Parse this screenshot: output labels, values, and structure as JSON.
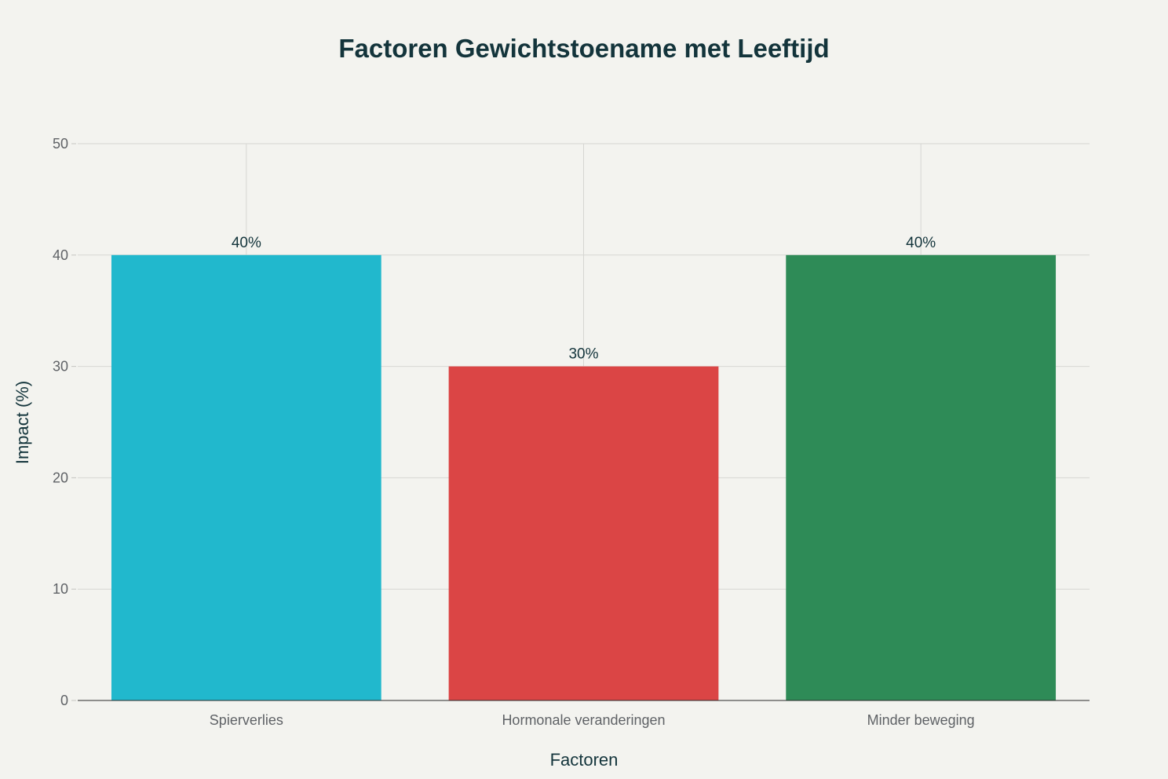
{
  "chart_data": {
    "type": "bar",
    "title": "Factoren Gewichtstoename met Leeftijd",
    "xlabel": "Factoren",
    "ylabel": "Impact (%)",
    "categories": [
      "Spierverlies",
      "Hormonale veranderingen",
      "Minder beweging"
    ],
    "values": [
      40,
      30,
      40
    ],
    "data_labels": [
      "40%",
      "30%",
      "40%"
    ],
    "colors": [
      "#21b8cd",
      "#db4545",
      "#2e8b57"
    ],
    "ylim": [
      0,
      50
    ],
    "yticks": [
      0,
      10,
      20,
      30,
      40,
      50
    ],
    "ytick_labels": [
      "0",
      "10",
      "20",
      "30",
      "40",
      "50"
    ],
    "grid": true,
    "legend": "none"
  }
}
